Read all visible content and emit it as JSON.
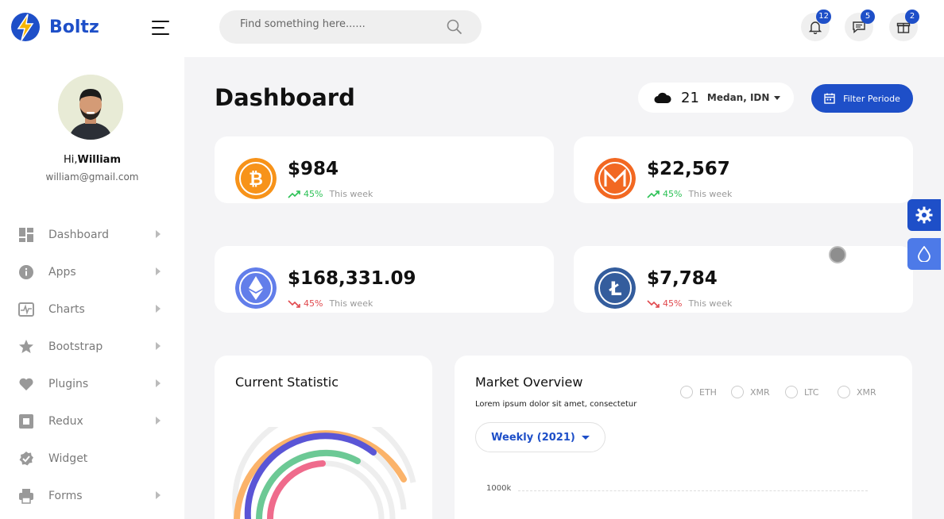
{
  "app": {
    "name": "Boltz"
  },
  "search": {
    "placeholder": "Find something here......"
  },
  "header": {
    "notifications": [
      {
        "icon": "bell-icon",
        "count": "12"
      },
      {
        "icon": "chat-icon",
        "count": "5"
      },
      {
        "icon": "gift-icon",
        "count": "2"
      }
    ]
  },
  "user": {
    "greeting": "Hi,",
    "name": "William",
    "email": "william@gmail.com"
  },
  "sidebar": {
    "items": [
      {
        "label": "Dashboard",
        "icon": "grid-icon",
        "has_arrow": true
      },
      {
        "label": "Apps",
        "icon": "info-icon",
        "has_arrow": true
      },
      {
        "label": "Charts",
        "icon": "chart-icon",
        "has_arrow": true
      },
      {
        "label": "Bootstrap",
        "icon": "star-icon",
        "has_arrow": true
      },
      {
        "label": "Plugins",
        "icon": "heart-icon",
        "has_arrow": true
      },
      {
        "label": "Redux",
        "icon": "square-icon",
        "has_arrow": true
      },
      {
        "label": "Widget",
        "icon": "badge-check-icon",
        "has_arrow": false
      },
      {
        "label": "Forms",
        "icon": "printer-icon",
        "has_arrow": true
      }
    ]
  },
  "page": {
    "title": "Dashboard"
  },
  "weather": {
    "temperature": "21",
    "location": "Medan, IDN"
  },
  "filter": {
    "label": "Filter Periode"
  },
  "cards": [
    {
      "coin": "bitcoin-icon",
      "value": "$984",
      "pct": "45%",
      "period": "This week",
      "trend": "up",
      "color": "#f7931a"
    },
    {
      "coin": "monero-icon",
      "value": "$22,567",
      "pct": "45%",
      "period": "This week",
      "trend": "up",
      "color": "#f26822"
    },
    {
      "coin": "ethereum-icon",
      "value": "$168,331.09",
      "pct": "45%",
      "period": "This week",
      "trend": "down",
      "color": "#627eea"
    },
    {
      "coin": "litecoin-icon",
      "value": "$7,784",
      "pct": "45%",
      "period": "This week",
      "trend": "down",
      "color": "#345d9d"
    }
  ],
  "current_statistic": {
    "title": "Current Statistic"
  },
  "market": {
    "title": "Market Overview",
    "subtitle": "Lorem ipsum dolor sit amet, consectetur",
    "options": [
      "ETH",
      "XMR",
      "LTC",
      "XMR"
    ],
    "range": "Weekly (2021)",
    "ytick": "1000k"
  },
  "colors": {
    "accent": "#1e4fc8",
    "up": "#2bc155",
    "down": "#e0474c"
  }
}
